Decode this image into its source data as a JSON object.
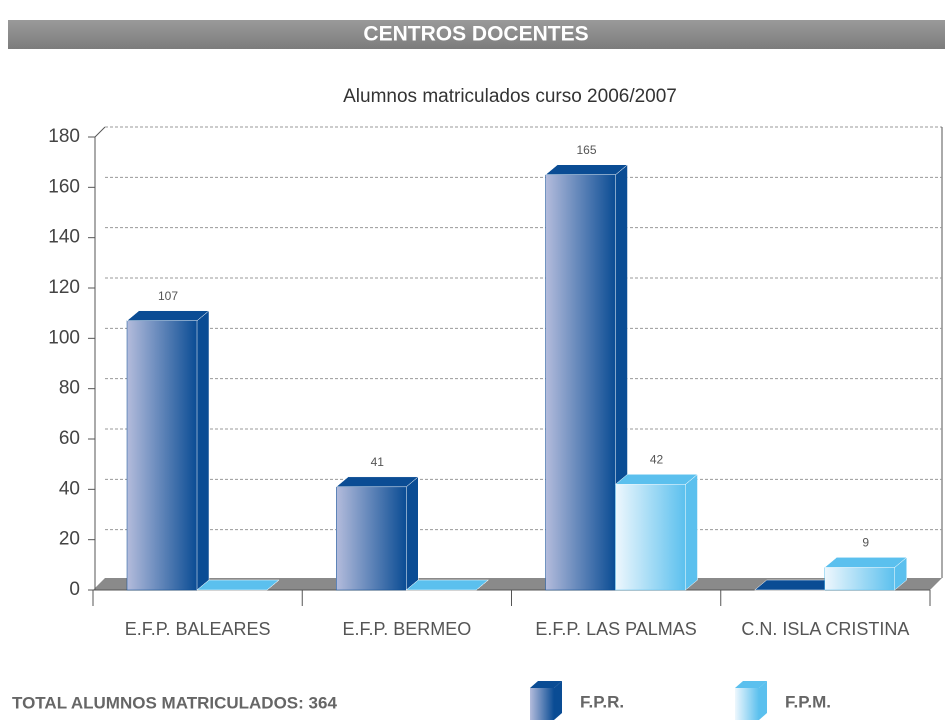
{
  "header": "CENTROS DOCENTES",
  "chart_data": {
    "type": "bar3d",
    "title": "Alumnos matriculados curso 2006/2007",
    "categories": [
      "E.F.P. BALEARES",
      "E.F.P. BERMEO",
      "E.F.P. LAS PALMAS",
      "C.N. ISLA CRISTINA"
    ],
    "series": [
      {
        "name": "F.P.R.",
        "color": "#0a4c94",
        "values": [
          107,
          41,
          165,
          0
        ]
      },
      {
        "name": "F.P.M.",
        "color": "#5bc0ee",
        "values": [
          0,
          0,
          42,
          9
        ]
      }
    ],
    "ylim": [
      0,
      180
    ],
    "yticks": [
      0,
      20,
      40,
      60,
      80,
      100,
      120,
      140,
      160,
      180
    ],
    "grid": true,
    "annotation": "TOTAL ALUMNOS MATRICULADOS: 364"
  }
}
